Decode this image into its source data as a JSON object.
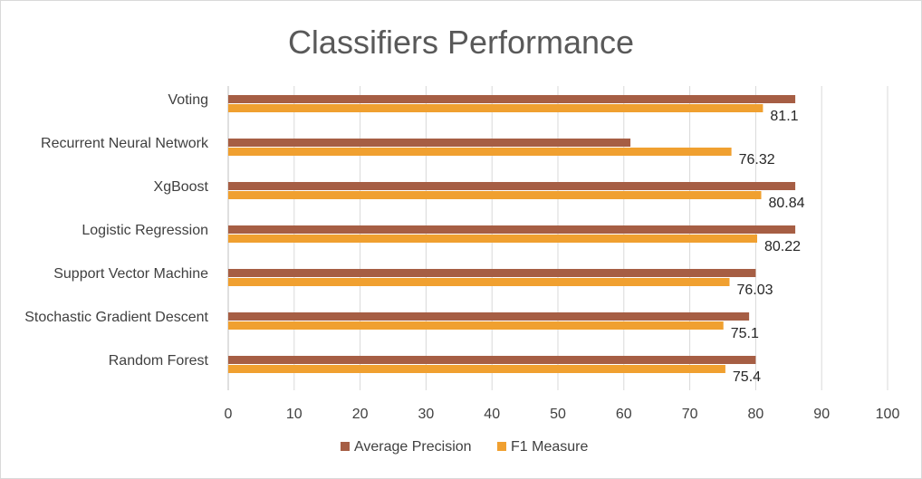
{
  "chart_data": {
    "type": "bar",
    "orientation": "horizontal",
    "title": "Classifiers Performance",
    "xlabel": "",
    "ylabel": "",
    "categories": [
      "Voting",
      "Recurrent Neural Network",
      "XgBoost",
      "Logistic Regression",
      "Support Vector Machine",
      "Stochastic Gradient Descent",
      "Random Forest"
    ],
    "series": [
      {
        "name": "Average Precision",
        "color": "#a65e44",
        "values": [
          86,
          61,
          86,
          86,
          80,
          79,
          80
        ]
      },
      {
        "name": "F1 Measure",
        "color": "#f0a030",
        "values": [
          81.1,
          76.32,
          80.84,
          80.22,
          76.03,
          75.1,
          75.4
        ],
        "data_labels": [
          "81.1",
          "76.32",
          "80.84",
          "80.22",
          "76.03",
          "75.1",
          "75.4"
        ]
      }
    ],
    "xlim": [
      0,
      100
    ],
    "xticks": [
      "0",
      "10",
      "20",
      "30",
      "40",
      "50",
      "60",
      "70",
      "80",
      "90",
      "100"
    ],
    "grid": true,
    "legend": "bottom"
  }
}
